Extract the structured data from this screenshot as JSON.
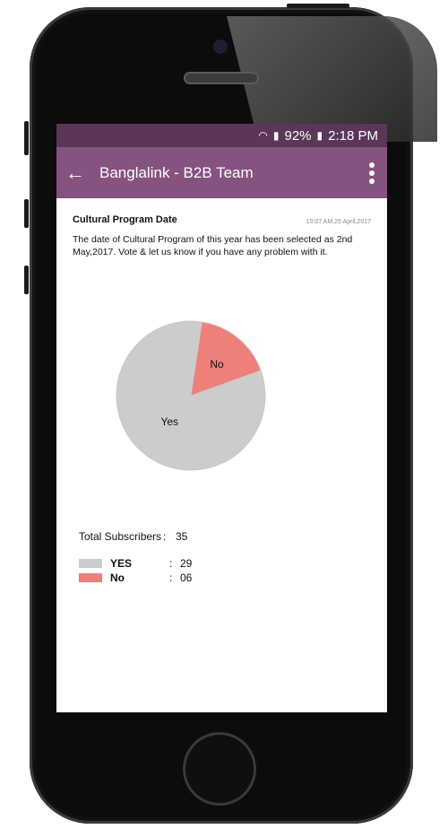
{
  "status": {
    "battery_percent": "92%",
    "time": "2:18 PM"
  },
  "appbar": {
    "title": "Banglalink - B2B Team"
  },
  "post": {
    "title": "Cultural Program Date",
    "timestamp": "10:07 AM,25 April,2017",
    "body": "The date of Cultural Program of this year has been selected as 2nd May,2017. Vote & let us know if you have any problem with it."
  },
  "colors": {
    "yes": "#cccccc",
    "no": "#ee7f79",
    "appbar": "#86527f",
    "statusbar": "#5b3659"
  },
  "chart_data": {
    "type": "pie",
    "categories": [
      "Yes",
      "No"
    ],
    "values": [
      29,
      6
    ],
    "colors": [
      "#cccccc",
      "#ee7f79"
    ]
  },
  "stats": {
    "total_label": "Total Subscribers",
    "colon": ":",
    "total_value": "35",
    "yes_label": "YES",
    "yes_value": "29",
    "no_label": "No",
    "no_value": "06"
  }
}
